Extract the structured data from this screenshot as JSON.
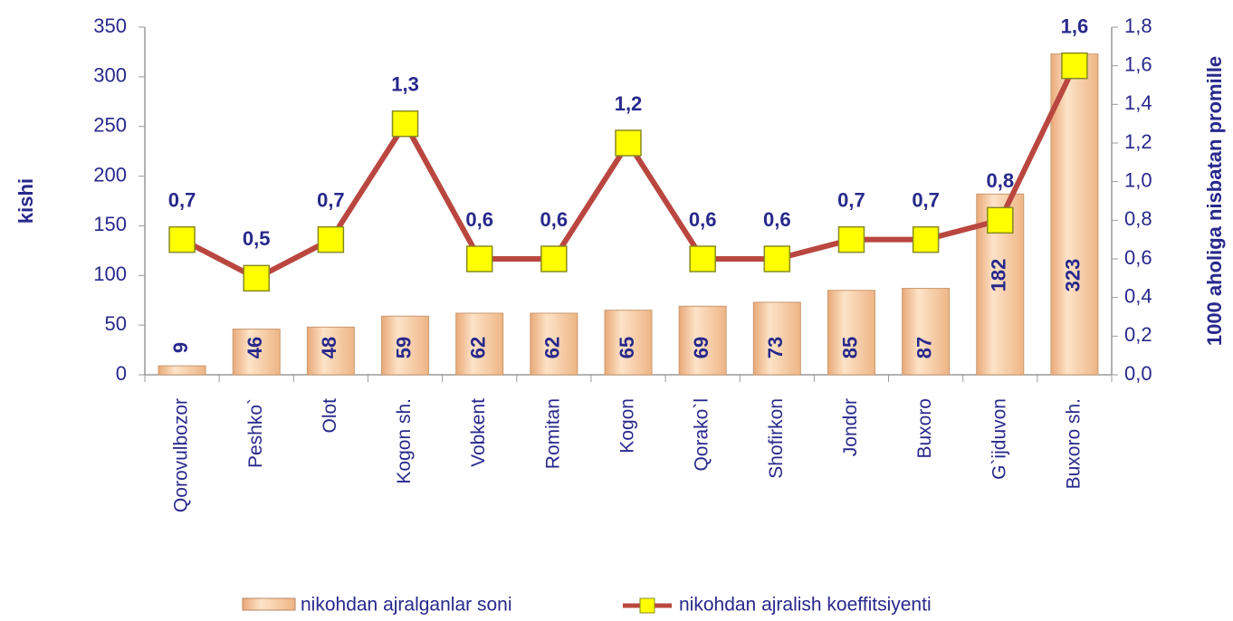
{
  "chart_data": {
    "type": "bar-line",
    "categories": [
      "Qorovulbozor",
      "Peshko`",
      "Olot",
      "Kogon sh.",
      "Vobkent",
      "Romitan",
      "Kogon",
      "Qorako`l",
      "Shofirkon",
      "Jondor",
      "Buxoro",
      "G`ijduvon",
      "Buxoro sh."
    ],
    "series": [
      {
        "name": "nikohdan ajralganlar  soni",
        "type": "bar",
        "color": "#f3c69b",
        "values": [
          9,
          46,
          48,
          59,
          62,
          62,
          65,
          69,
          73,
          85,
          87,
          182,
          323
        ]
      },
      {
        "name": "nikohdan ajralish  koeffitsiyenti",
        "type": "line",
        "axis": "y2",
        "color": "#b9473f",
        "marker_color": "#ffff00",
        "values": [
          0.7,
          0.5,
          0.7,
          1.3,
          0.6,
          0.6,
          1.2,
          0.6,
          0.6,
          0.7,
          0.7,
          0.8,
          1.6
        ],
        "value_labels": [
          "0,7",
          "0,5",
          "0,7",
          "1,3",
          "0,6",
          "0,6",
          "1,2",
          "0,6",
          "0,6",
          "0,7",
          "0,7",
          "0,8",
          "1,6"
        ]
      }
    ],
    "ylabel": "kishi",
    "y2label": "1000 aholiga nisbatan promille",
    "ylim": [
      0,
      350
    ],
    "yticks": [
      0,
      50,
      100,
      150,
      200,
      250,
      300,
      350
    ],
    "y2lim": [
      0,
      1.8
    ],
    "y2ticks": [
      {
        "value": 0,
        "label": "0,0"
      },
      {
        "value": 0.2,
        "label": "0,2"
      },
      {
        "value": 0.4,
        "label": "0,4"
      },
      {
        "value": 0.6,
        "label": "0,6"
      },
      {
        "value": 0.8,
        "label": "0,8"
      },
      {
        "value": 1.0,
        "label": "1,0"
      },
      {
        "value": 1.2,
        "label": "1,2"
      },
      {
        "value": 1.4,
        "label": "1,4"
      },
      {
        "value": 1.6,
        "label": "1,6"
      },
      {
        "value": 1.8,
        "label": "1,8"
      }
    ],
    "grid": false,
    "legend": "bottom"
  }
}
